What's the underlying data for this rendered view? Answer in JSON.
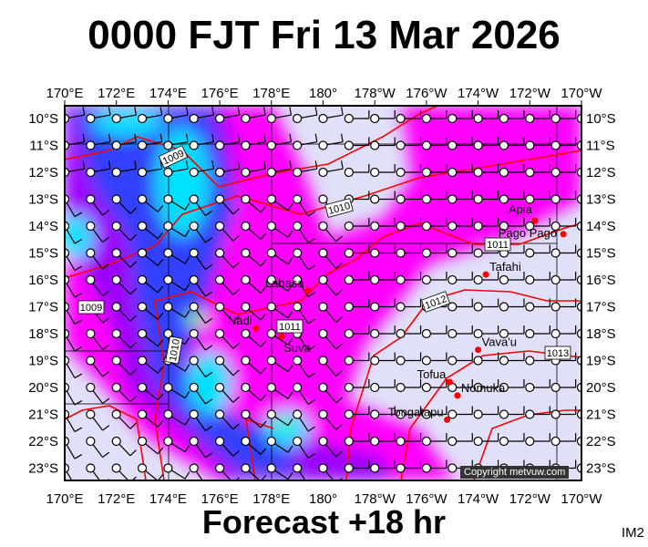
{
  "title": "0000 FJT Fri 13 Mar 2026",
  "footer": "Forecast +18 hr",
  "corner_label": "IM2",
  "copyright": "Copyright metvuw.com",
  "lon_labels": [
    "170°E",
    "172°E",
    "174°E",
    "176°E",
    "178°E",
    "180°",
    "178°W",
    "176°W",
    "174°W",
    "172°W",
    "170°W"
  ],
  "lat_labels": [
    "10°S",
    "11°S",
    "12°S",
    "13°S",
    "14°S",
    "15°S",
    "16°S",
    "17°S",
    "18°S",
    "19°S",
    "20°S",
    "21°S",
    "22°S",
    "23°S"
  ],
  "colors": {
    "background": "#e0e0f8",
    "rain_light": "#ff00ff",
    "rain_mod": "#9c00ff",
    "rain_heavy": "#3040ff",
    "rain_vheavy": "#00e0ff",
    "rain_extreme": "#80ff40",
    "isobar": "#ff0000",
    "place": "#ff0000"
  },
  "places": [
    {
      "name": "Apia",
      "lon": -171.8,
      "lat": -13.8
    },
    {
      "name": "Pago Pago",
      "lon": -170.7,
      "lat": -14.3
    },
    {
      "name": "Tafahi",
      "lon": -173.7,
      "lat": -15.8
    },
    {
      "name": "Labasa",
      "lon": 179.4,
      "lat": -16.4
    },
    {
      "name": "Nadi",
      "lon": 177.4,
      "lat": -17.8
    },
    {
      "name": "Suva",
      "lon": 178.4,
      "lat": -18.1
    },
    {
      "name": "Vava'u",
      "lon": -174.0,
      "lat": -18.6
    },
    {
      "name": "Tofua",
      "lon": -175.1,
      "lat": -19.8
    },
    {
      "name": "Nomuka",
      "lon": -174.8,
      "lat": -20.3
    },
    {
      "name": "Tongatapu",
      "lon": -175.2,
      "lat": -21.2
    }
  ],
  "isobar_labels": [
    "1009",
    "1010",
    "1011",
    "1012",
    "1013",
    "1011",
    "1009",
    "1010"
  ]
}
